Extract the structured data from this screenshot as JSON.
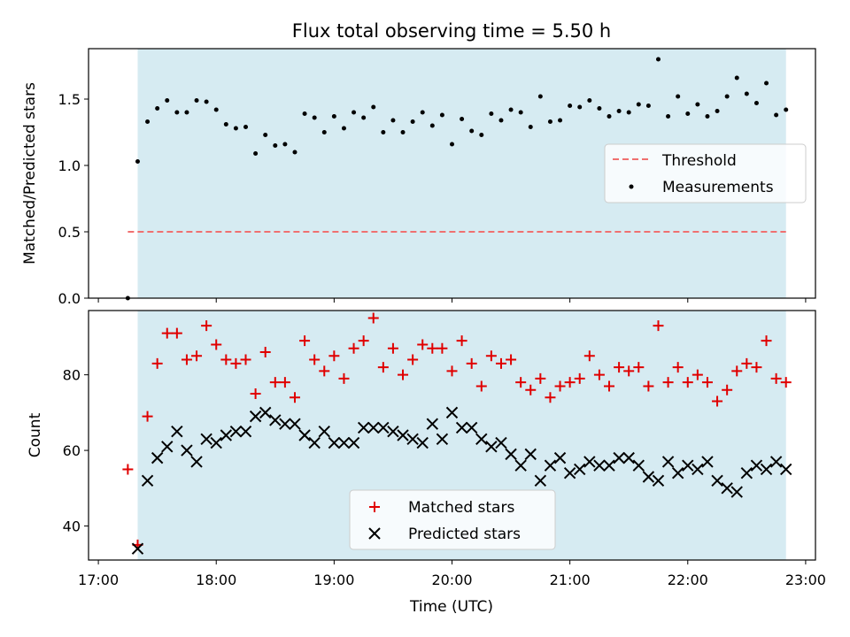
{
  "figure": {
    "title": "Flux total observing time = 5.50 h",
    "xlabel": "Time (UTC)"
  },
  "chart_data": [
    {
      "type": "scatter",
      "title": "Flux total observing time = 5.50 h",
      "xlabel": "",
      "ylabel": "Matched/Predicted stars",
      "xlim": [
        "16:55",
        "23:05"
      ],
      "ylim": [
        0,
        1.88
      ],
      "yticks": [
        0.0,
        0.5,
        1.0,
        1.5
      ],
      "ytick_labels": [
        "0.0",
        "0.5",
        "1.0",
        "1.5"
      ],
      "shaded_span": [
        "17:20",
        "22:50"
      ],
      "threshold": {
        "name": "Threshold",
        "y": 0.5,
        "x_start": "17:15",
        "x_end": "22:50",
        "color": "#f07070"
      },
      "legend": {
        "position": "right",
        "entries": [
          "Threshold",
          "Measurements"
        ]
      },
      "series": [
        {
          "name": "Measurements",
          "color": "#000000",
          "x": [
            "17:15",
            "17:20",
            "17:25",
            "17:30",
            "17:35",
            "17:40",
            "17:45",
            "17:50",
            "17:55",
            "18:00",
            "18:05",
            "18:10",
            "18:15",
            "18:20",
            "18:25",
            "18:30",
            "18:35",
            "18:40",
            "18:45",
            "18:50",
            "18:55",
            "19:00",
            "19:05",
            "19:10",
            "19:15",
            "19:20",
            "19:25",
            "19:30",
            "19:35",
            "19:40",
            "19:45",
            "19:50",
            "19:55",
            "20:00",
            "20:05",
            "20:10",
            "20:15",
            "20:20",
            "20:25",
            "20:30",
            "20:35",
            "20:40",
            "20:45",
            "20:50",
            "20:55",
            "21:00",
            "21:05",
            "21:10",
            "21:15",
            "21:20",
            "21:25",
            "21:30",
            "21:35",
            "21:40",
            "21:45",
            "21:50",
            "21:55",
            "22:00",
            "22:05",
            "22:10",
            "22:15",
            "22:20",
            "22:25",
            "22:30",
            "22:35",
            "22:40",
            "22:45",
            "22:50"
          ],
          "y": [
            0.0,
            1.03,
            1.33,
            1.43,
            1.49,
            1.4,
            1.4,
            1.49,
            1.48,
            1.42,
            1.31,
            1.28,
            1.29,
            1.09,
            1.23,
            1.15,
            1.16,
            1.1,
            1.39,
            1.36,
            1.25,
            1.37,
            1.28,
            1.4,
            1.36,
            1.44,
            1.25,
            1.34,
            1.25,
            1.33,
            1.4,
            1.3,
            1.38,
            1.16,
            1.35,
            1.26,
            1.23,
            1.39,
            1.34,
            1.42,
            1.4,
            1.29,
            1.52,
            1.33,
            1.34,
            1.45,
            1.44,
            1.49,
            1.43,
            1.37,
            1.41,
            1.4,
            1.46,
            1.45,
            1.8,
            1.37,
            1.52,
            1.39,
            1.46,
            1.37,
            1.41,
            1.52,
            1.66,
            1.54,
            1.47,
            1.62,
            1.38,
            1.42
          ]
        }
      ]
    },
    {
      "type": "scatter",
      "xlabel": "Time (UTC)",
      "ylabel": "Count",
      "xlim": [
        "16:55",
        "23:05"
      ],
      "ylim": [
        31,
        97
      ],
      "yticks": [
        40,
        60,
        80
      ],
      "ytick_labels": [
        "40",
        "60",
        "80"
      ],
      "xticks": [
        "17:00",
        "18:00",
        "19:00",
        "20:00",
        "21:00",
        "22:00",
        "23:00"
      ],
      "shaded_span": [
        "17:20",
        "22:50"
      ],
      "legend": {
        "position": "lower center",
        "entries": [
          "Matched stars",
          "Predicted stars"
        ]
      },
      "series": [
        {
          "name": "Matched stars",
          "marker": "+",
          "color": "#e00000",
          "x": [
            "17:15",
            "17:20",
            "17:25",
            "17:30",
            "17:35",
            "17:40",
            "17:45",
            "17:50",
            "17:55",
            "18:00",
            "18:05",
            "18:10",
            "18:15",
            "18:20",
            "18:25",
            "18:30",
            "18:35",
            "18:40",
            "18:45",
            "18:50",
            "18:55",
            "19:00",
            "19:05",
            "19:10",
            "19:15",
            "19:20",
            "19:25",
            "19:30",
            "19:35",
            "19:40",
            "19:45",
            "19:50",
            "19:55",
            "20:00",
            "20:05",
            "20:10",
            "20:15",
            "20:20",
            "20:25",
            "20:30",
            "20:35",
            "20:40",
            "20:45",
            "20:50",
            "20:55",
            "21:00",
            "21:05",
            "21:10",
            "21:15",
            "21:20",
            "21:25",
            "21:30",
            "21:35",
            "21:40",
            "21:45",
            "21:50",
            "21:55",
            "22:00",
            "22:05",
            "22:10",
            "22:15",
            "22:20",
            "22:25",
            "22:30",
            "22:35",
            "22:40",
            "22:45",
            "22:50"
          ],
          "y": [
            55,
            35,
            69,
            83,
            91,
            91,
            84,
            85,
            93,
            88,
            84,
            83,
            84,
            75,
            86,
            78,
            78,
            74,
            89,
            84,
            81,
            85,
            79,
            87,
            89,
            95,
            82,
            87,
            80,
            84,
            88,
            87,
            87,
            81,
            89,
            83,
            77,
            85,
            83,
            84,
            78,
            76,
            79,
            74,
            77,
            78,
            79,
            85,
            80,
            77,
            82,
            81,
            82,
            77,
            93,
            78,
            82,
            78,
            80,
            78,
            73,
            76,
            81,
            83,
            82,
            89,
            79,
            78
          ]
        },
        {
          "name": "Predicted stars",
          "marker": "x",
          "color": "#000000",
          "x": [
            "17:20",
            "17:25",
            "17:30",
            "17:35",
            "17:40",
            "17:45",
            "17:50",
            "17:55",
            "18:00",
            "18:05",
            "18:10",
            "18:15",
            "18:20",
            "18:25",
            "18:30",
            "18:35",
            "18:40",
            "18:45",
            "18:50",
            "18:55",
            "19:00",
            "19:05",
            "19:10",
            "19:15",
            "19:20",
            "19:25",
            "19:30",
            "19:35",
            "19:40",
            "19:45",
            "19:50",
            "19:55",
            "20:00",
            "20:05",
            "20:10",
            "20:15",
            "20:20",
            "20:25",
            "20:30",
            "20:35",
            "20:40",
            "20:45",
            "20:50",
            "20:55",
            "21:00",
            "21:05",
            "21:10",
            "21:15",
            "21:20",
            "21:25",
            "21:30",
            "21:35",
            "21:40",
            "21:45",
            "21:50",
            "21:55",
            "22:00",
            "22:05",
            "22:10",
            "22:15",
            "22:20",
            "22:25",
            "22:30",
            "22:35",
            "22:40",
            "22:45",
            "22:50"
          ],
          "y": [
            34,
            52,
            58,
            61,
            65,
            60,
            57,
            63,
            62,
            64,
            65,
            65,
            69,
            70,
            68,
            67,
            67,
            64,
            62,
            65,
            62,
            62,
            62,
            66,
            66,
            66,
            65,
            64,
            63,
            62,
            67,
            63,
            70,
            66,
            66,
            63,
            61,
            62,
            59,
            56,
            59,
            52,
            56,
            58,
            54,
            55,
            57,
            56,
            56,
            58,
            58,
            56,
            53,
            52,
            57,
            54,
            56,
            55,
            57,
            52,
            50,
            49,
            54,
            56,
            55,
            57,
            55
          ]
        }
      ]
    }
  ]
}
